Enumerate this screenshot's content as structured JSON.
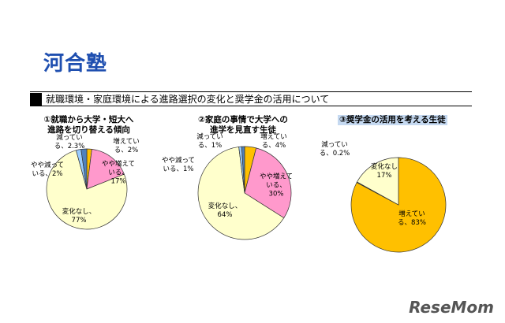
{
  "logo": "河合塾",
  "heading": "就職環境・家庭環境による進路選択の変化と奨学金の活用について",
  "watermark": "ReseMom",
  "chart_data": [
    {
      "type": "pie",
      "title": "①就職から大学・短大へ\n進路を切り替える傾向",
      "values": [
        2,
        17,
        77,
        2,
        2.3
      ],
      "value_labels": [
        "増えている、2%",
        "やや増えている、17%",
        "変化なし、77%",
        "やや減っている、2%",
        "減っている、2.3%"
      ],
      "colors": [
        "#ffc000",
        "#ff99cc",
        "#ffffcc",
        "#99ccff",
        "#4f81bd"
      ]
    },
    {
      "type": "pie",
      "title": "②家庭の事情で大学への\n進学を見直す生徒",
      "values": [
        4,
        30,
        64,
        1,
        1
      ],
      "value_labels": [
        "増えている、4%",
        "やや増えている、30%",
        "変化なし、64%",
        "やや減っている、1%",
        "減っている、1%"
      ],
      "colors": [
        "#ffc000",
        "#ff99cc",
        "#ffffcc",
        "#99ccff",
        "#4f81bd"
      ]
    },
    {
      "type": "pie",
      "title": "③奨学金の活用を考える生徒",
      "values": [
        83,
        0.2,
        17
      ],
      "value_labels": [
        "増えている、83%",
        "減っている、0.2%",
        "変化なし\n17%"
      ],
      "colors": [
        "#ffc000",
        "#4f81bd",
        "#ffffcc"
      ]
    }
  ]
}
